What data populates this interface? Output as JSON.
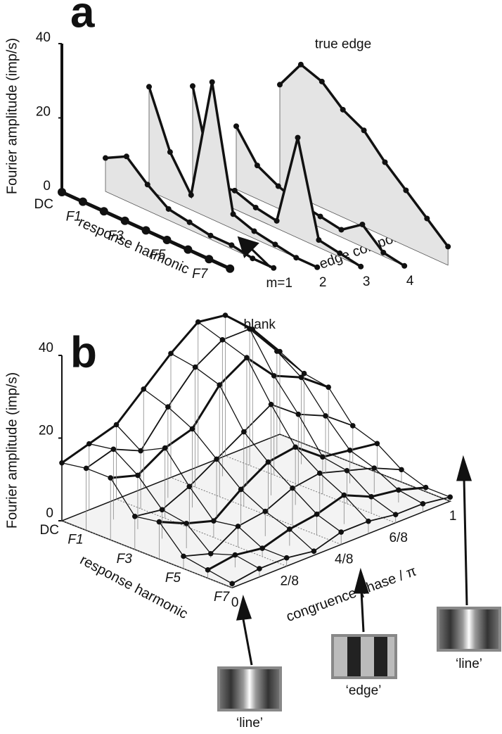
{
  "chart_data": [
    {
      "type": "waterfall3d",
      "title": "a",
      "ylabel": "Fourier amplitude (imp/s)",
      "xlabel": "response harmonic",
      "depth_label": "edge components",
      "categories": [
        "DC",
        "F1",
        null,
        "F3",
        null,
        "F5",
        null,
        "F7",
        null
      ],
      "ylim": [
        0,
        40
      ],
      "yticks": [
        0,
        20,
        40
      ],
      "color": "#111111",
      "series": [
        {
          "name": "blank",
          "values": [
            0,
            0,
            0,
            0,
            0,
            0,
            0,
            0,
            0
          ]
        },
        {
          "name": "m=1",
          "values": [
            9,
            12,
            7,
            3,
            2,
            1,
            1,
            0,
            0
          ]
        },
        {
          "name": "2",
          "values": [
            28,
            13,
            4,
            37,
            4,
            2,
            1,
            0,
            0
          ]
        },
        {
          "name": "3",
          "values": [
            28,
            4,
            5,
            3,
            2,
            27,
            2,
            1,
            0
          ]
        },
        {
          "name": "4",
          "values": [
            17,
            9,
            6,
            4,
            3,
            2,
            6,
            1,
            0
          ]
        },
        {
          "name": "true edge",
          "values": [
            28,
            36,
            34,
            29,
            26,
            20,
            15,
            10,
            5
          ]
        }
      ]
    },
    {
      "type": "surface3d",
      "title": "b",
      "ylabel": "Fourier amplitude (imp/s)",
      "xlabel": "response harmonic",
      "depth_label": "congruence phase / π",
      "categories": [
        "DC",
        "F1",
        null,
        "F3",
        null,
        "F5",
        null,
        "F7"
      ],
      "ylim": [
        0,
        40
      ],
      "yticks": [
        0,
        20,
        40
      ],
      "color": "#111111",
      "x": [
        0,
        0.125,
        0.25,
        0.375,
        0.5,
        0.625,
        0.75,
        0.875,
        1
      ],
      "xlim": [
        0,
        1
      ],
      "xticks": [
        0,
        {
          "value": 0.25,
          "label": "2/8"
        },
        {
          "value": 0.5,
          "label": "4/8"
        },
        {
          "value": 0.75,
          "label": "6/8"
        },
        1
      ],
      "stimulus_labels": [
        "‘line’",
        "‘edge’",
        "‘line’"
      ],
      "series": [
        {
          "values": [
            14,
            16,
            18,
            24,
            30,
            35,
            34,
            28,
            20
          ]
        },
        {
          "values": [
            15,
            17,
            14,
            22,
            29,
            33,
            33,
            25,
            17
          ]
        },
        {
          "values": [
            15,
            13,
            17,
            19,
            27,
            31,
            24,
            21,
            16
          ]
        },
        {
          "values": [
            8,
            7,
            10,
            14,
            18,
            22,
            17,
            14,
            9
          ]
        },
        {
          "values": [
            9,
            6,
            4,
            9,
            13,
            14,
            9,
            8,
            7
          ]
        },
        {
          "values": [
            3,
            1,
            5,
            6,
            9,
            10,
            8,
            6,
            3
          ]
        },
        {
          "values": [
            2,
            3,
            2,
            4,
            5,
            7,
            4,
            3,
            1
          ]
        },
        {
          "values": [
            1,
            2,
            2,
            1,
            3,
            3,
            2,
            2,
            1
          ]
        }
      ]
    }
  ]
}
